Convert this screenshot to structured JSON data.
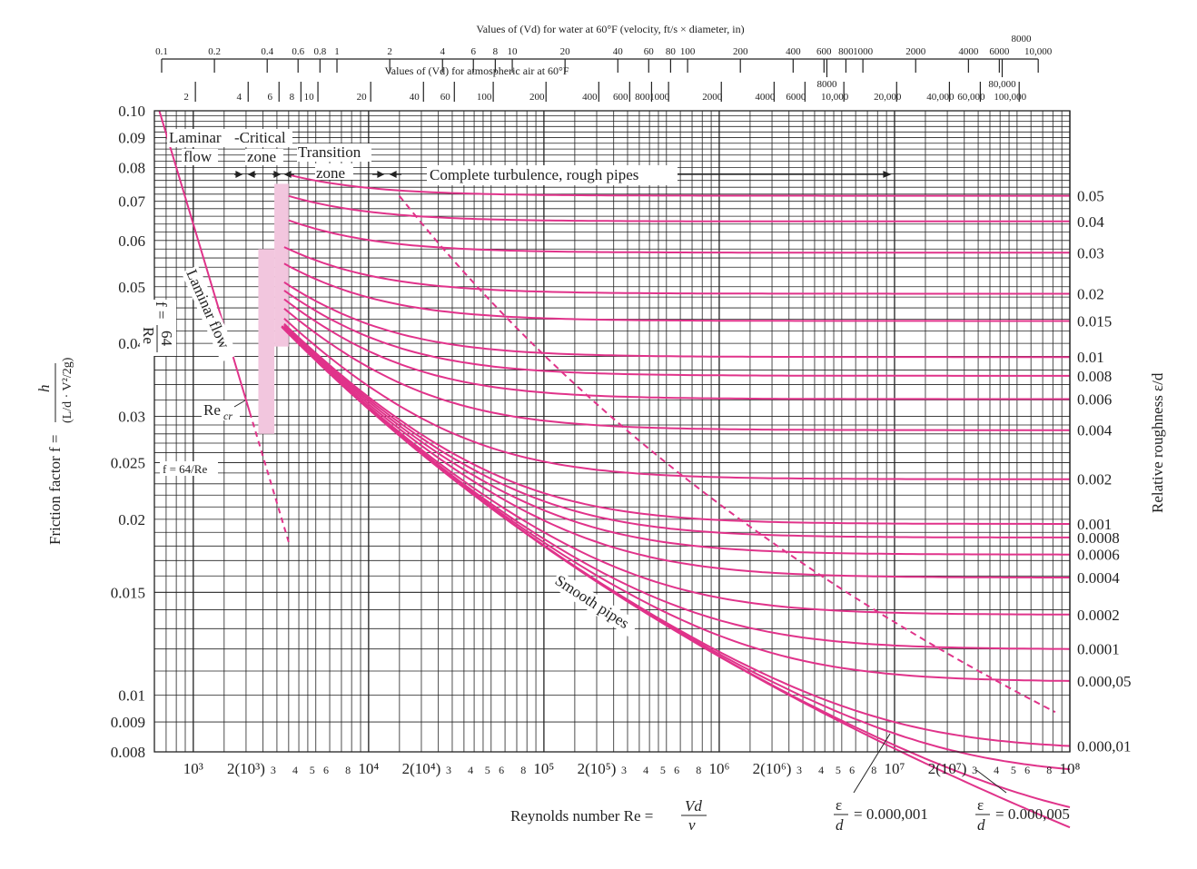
{
  "chart_data": {
    "type": "line",
    "title": "",
    "xlabel": "Reynolds number Re = Vd/ν",
    "xlabel_main": "Reynolds number Re =",
    "xlabel_num": "Vd",
    "xlabel_den": "ν",
    "ylabel": "Friction factor f = h / ((L/d)(V²/2g))",
    "ylabel_main": "Friction factor f =",
    "ylabel_num": "h",
    "ylabel_den": "(L/d · V²/2g)",
    "right_label": "Relative roughness",
    "right_label_frac": "ε/d",
    "x_scale": "log",
    "y_scale": "log",
    "xlim": [
      600,
      100000000
    ],
    "ylim": [
      0.008,
      0.1
    ],
    "grid": true,
    "line_color": "#e0338a",
    "shade_color": "#f2c6de",
    "y_ticks": [
      {
        "value": 0.1,
        "label": "0.10"
      },
      {
        "value": 0.09,
        "label": "0.09"
      },
      {
        "value": 0.08,
        "label": "0.08"
      },
      {
        "value": 0.07,
        "label": "0.07"
      },
      {
        "value": 0.06,
        "label": "0.06"
      },
      {
        "value": 0.05,
        "label": "0.05"
      },
      {
        "value": 0.04,
        "label": "0.04"
      },
      {
        "value": 0.03,
        "label": "0.03"
      },
      {
        "value": 0.025,
        "label": "0.025"
      },
      {
        "value": 0.02,
        "label": "0.02"
      },
      {
        "value": 0.015,
        "label": "0.015"
      },
      {
        "value": 0.01,
        "label": "0.01"
      },
      {
        "value": 0.009,
        "label": "0.009"
      },
      {
        "value": 0.008,
        "label": "0.008"
      }
    ],
    "x_ticks": [
      {
        "value": 1000,
        "label": "10³"
      },
      {
        "value": 2000,
        "label": "2(10³)"
      },
      {
        "value": 3000,
        "label": "3"
      },
      {
        "value": 4000,
        "label": "4"
      },
      {
        "value": 5000,
        "label": "5"
      },
      {
        "value": 6000,
        "label": "6"
      },
      {
        "value": 8000,
        "label": "8"
      },
      {
        "value": 10000,
        "label": "10⁴"
      },
      {
        "value": 20000,
        "label": "2(10⁴)"
      },
      {
        "value": 30000,
        "label": "3"
      },
      {
        "value": 40000,
        "label": "4"
      },
      {
        "value": 50000,
        "label": "5"
      },
      {
        "value": 60000,
        "label": "6"
      },
      {
        "value": 80000,
        "label": "8"
      },
      {
        "value": 100000,
        "label": "10⁵"
      },
      {
        "value": 200000,
        "label": "2(10⁵)"
      },
      {
        "value": 300000,
        "label": "3"
      },
      {
        "value": 400000,
        "label": "4"
      },
      {
        "value": 500000,
        "label": "5"
      },
      {
        "value": 600000,
        "label": "6"
      },
      {
        "value": 800000,
        "label": "8"
      },
      {
        "value": 1000000,
        "label": "10⁶"
      },
      {
        "value": 2000000,
        "label": "2(10⁶)"
      },
      {
        "value": 3000000,
        "label": "3"
      },
      {
        "value": 4000000,
        "label": "4"
      },
      {
        "value": 5000000,
        "label": "5"
      },
      {
        "value": 6000000,
        "label": "6"
      },
      {
        "value": 8000000,
        "label": "8"
      },
      {
        "value": 10000000,
        "label": "10⁷"
      },
      {
        "value": 20000000,
        "label": "2(10⁷)"
      },
      {
        "value": 30000000,
        "label": "3"
      },
      {
        "value": 40000000,
        "label": "4"
      },
      {
        "value": 50000000,
        "label": "5"
      },
      {
        "value": 60000000,
        "label": "6"
      },
      {
        "value": 80000000,
        "label": "8"
      },
      {
        "value": 100000000,
        "label": "10⁸"
      }
    ],
    "top_axis_water": {
      "label": "Values of (Vd) for water at 60°F (velocity, ft/s × diameter, in)",
      "ticks": [
        "0.1",
        "0.2",
        "0.4",
        "0.6",
        "0.8",
        "1",
        "2",
        "4",
        "6",
        "8",
        "10",
        "20",
        "40",
        "60",
        "80",
        "100",
        "200",
        "400",
        "600",
        "800",
        "1000",
        "2000",
        "4000",
        "6000",
        "8000",
        "10,000"
      ],
      "values": [
        0.1,
        0.2,
        0.4,
        0.6,
        0.8,
        1,
        2,
        4,
        6,
        8,
        10,
        20,
        40,
        60,
        80,
        100,
        200,
        400,
        600,
        800,
        1000,
        2000,
        4000,
        6000,
        8000,
        10000
      ]
    },
    "top_axis_air": {
      "label": "Values of (Vd) for atmospheric air at 60°F",
      "ticks": [
        "2",
        "4",
        "6",
        "8",
        "10",
        "20",
        "40",
        "60",
        "100",
        "200",
        "400",
        "600",
        "800",
        "1000",
        "2000",
        "4000",
        "6000",
        "8000",
        "10,000",
        "20,000",
        "40,000",
        "60,000",
        "80,000",
        "100,000"
      ],
      "values": [
        2,
        4,
        6,
        8,
        10,
        20,
        40,
        60,
        100,
        200,
        400,
        600,
        800,
        1000,
        2000,
        4000,
        6000,
        8000,
        10000,
        20000,
        40000,
        60000,
        80000,
        100000
      ]
    },
    "laminar": {
      "equation": "f = 64/Re",
      "label": "Laminar flow",
      "f_text": "f =",
      "num": "64",
      "den": "Re",
      "critical_label": "Re",
      "critical_sub": "cr"
    },
    "series": [
      {
        "name": "0.05",
        "roughness": 0.05
      },
      {
        "name": "0.04",
        "roughness": 0.04
      },
      {
        "name": "0.03",
        "roughness": 0.03
      },
      {
        "name": "0.02",
        "roughness": 0.02
      },
      {
        "name": "0.015",
        "roughness": 0.015
      },
      {
        "name": "0.01",
        "roughness": 0.01
      },
      {
        "name": "0.008",
        "roughness": 0.008
      },
      {
        "name": "0.006",
        "roughness": 0.006
      },
      {
        "name": "0.004",
        "roughness": 0.004
      },
      {
        "name": "0.002",
        "roughness": 0.002
      },
      {
        "name": "0.001",
        "roughness": 0.001
      },
      {
        "name": "0.0008",
        "roughness": 0.0008
      },
      {
        "name": "0.0006",
        "roughness": 0.0006
      },
      {
        "name": "0.0004",
        "roughness": 0.0004
      },
      {
        "name": "0.0002",
        "roughness": 0.0002
      },
      {
        "name": "0.0001",
        "roughness": 0.0001
      },
      {
        "name": "0.000,05",
        "roughness": 5e-05
      },
      {
        "name": "0.000,01",
        "roughness": 1e-05
      },
      {
        "name": "0.000,005",
        "roughness": 5e-06
      },
      {
        "name": "0.000,001",
        "roughness": 1e-06
      },
      {
        "name": "Smooth pipes",
        "roughness": 0
      }
    ],
    "zones": {
      "laminar_line1": "Laminar",
      "laminar_line2": "flow",
      "critical_line1": "-Critical",
      "critical_line2": "zone",
      "transition_line1": "Transition",
      "transition_line2": "zone",
      "complete": "Complete turbulence, rough pipes",
      "smooth": "Smooth pipes"
    },
    "bottom_notes": [
      {
        "frac_num": "ε",
        "frac_den": "d",
        "value": "= 0.000,001"
      },
      {
        "frac_num": "ε",
        "frac_den": "d",
        "value": "= 0.000,005"
      }
    ]
  }
}
